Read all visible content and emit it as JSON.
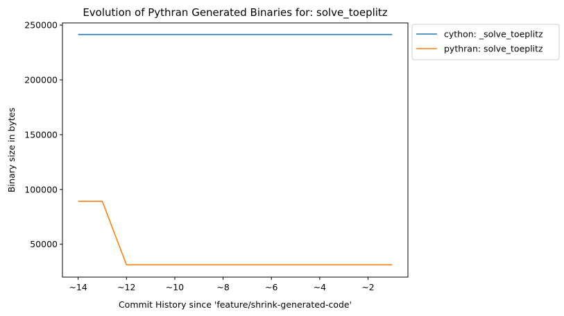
{
  "chart_data": {
    "type": "line",
    "title": "Evolution of Pythran Generated Binaries for: solve_toeplitz",
    "xlabel": "Commit History since 'feature/shrink-generated-code'",
    "ylabel": "Binary size in bytes",
    "x": [
      -14,
      -13,
      -12,
      -11,
      -10,
      -9,
      -8,
      -7,
      -6,
      -5,
      -4,
      -3,
      -2,
      -1
    ],
    "xlim": [
      -14.65,
      -0.35
    ],
    "ylim": [
      20000,
      252000
    ],
    "x_ticks": [
      -14,
      -12,
      -10,
      -8,
      -6,
      -4,
      -2
    ],
    "x_tick_labels": [
      "~14",
      "~12",
      "~10",
      "~8",
      "~6",
      "~4",
      "~2"
    ],
    "y_ticks": [
      50000,
      100000,
      150000,
      200000,
      250000
    ],
    "y_tick_labels": [
      "50000",
      "100000",
      "150000",
      "200000",
      "250000"
    ],
    "grid": false,
    "legend_position": "outside-top-right",
    "series": [
      {
        "name": "cython: _solve_toeplitz",
        "color": "#1f77b4",
        "values": [
          241400,
          241400,
          241400,
          241400,
          241400,
          241400,
          241400,
          241400,
          241400,
          241400,
          241400,
          241400,
          241400,
          241400
        ]
      },
      {
        "name": "pythran: solve_toeplitz",
        "color": "#ff7f0e",
        "values": [
          89200,
          89200,
          31200,
          31200,
          31200,
          31200,
          31200,
          31200,
          31200,
          31200,
          31200,
          31200,
          31200,
          31200
        ]
      }
    ]
  }
}
